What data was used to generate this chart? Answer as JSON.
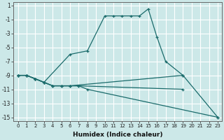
{
  "xlabel": "Humidex (Indice chaleur)",
  "background_color": "#cce8e8",
  "grid_color": "#ffffff",
  "line_color": "#1a6b6b",
  "xlim": [
    -0.5,
    23.5
  ],
  "ylim": [
    -15.5,
    1.5
  ],
  "yticks": [
    1,
    -1,
    -3,
    -5,
    -7,
    -9,
    -11,
    -13,
    -15
  ],
  "xticks": [
    0,
    1,
    2,
    3,
    4,
    5,
    6,
    7,
    8,
    9,
    10,
    11,
    12,
    13,
    14,
    15,
    16,
    17,
    18,
    19,
    20,
    21,
    22,
    23
  ],
  "series": [
    {
      "x": [
        0,
        1,
        2,
        3,
        6,
        8,
        10,
        11,
        12,
        13,
        14,
        15,
        16,
        17,
        19,
        23
      ],
      "y": [
        -9,
        -9,
        -9.5,
        -10,
        -6,
        -5.5,
        -0.5,
        -0.5,
        -0.5,
        -0.5,
        -0.5,
        0.5,
        -3.5,
        -7,
        -9,
        -15
      ]
    },
    {
      "x": [
        0,
        1,
        2,
        3,
        4,
        5,
        6,
        19
      ],
      "y": [
        -9,
        -9,
        -9.5,
        -10,
        -10.5,
        -10.5,
        -10.5,
        -9
      ]
    },
    {
      "x": [
        0,
        1,
        2,
        3,
        4,
        5,
        6,
        7,
        19
      ],
      "y": [
        -9,
        -9,
        -9.5,
        -10,
        -10.5,
        -10.5,
        -10.5,
        -10.5,
        -11
      ]
    },
    {
      "x": [
        0,
        1,
        2,
        3,
        4,
        5,
        6,
        7,
        8,
        23
      ],
      "y": [
        -9,
        -9,
        -9.5,
        -10,
        -10.5,
        -10.5,
        -10.5,
        -10.5,
        -11,
        -15
      ]
    }
  ]
}
